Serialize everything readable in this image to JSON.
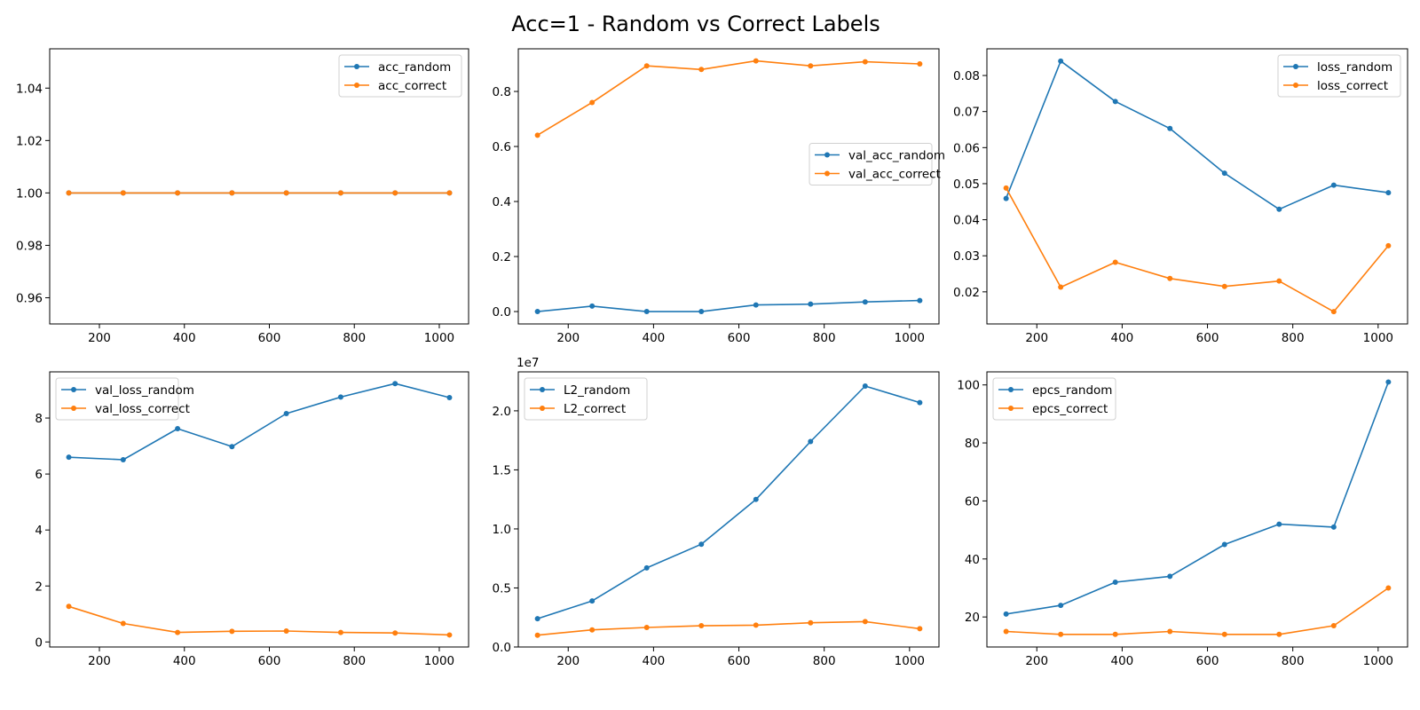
{
  "figure": {
    "title": "Acc=1 - Random vs Correct Labels"
  },
  "colors": {
    "random": "#1f77b4",
    "correct": "#ff7f0e"
  },
  "chart_data": [
    {
      "type": "line",
      "title": "",
      "xlabel": "",
      "ylabel": "",
      "x": [
        128,
        256,
        384,
        512,
        640,
        768,
        896,
        1024
      ],
      "xlim": [
        83,
        1069
      ],
      "ylim": [
        0.95,
        1.055
      ],
      "xticks": [
        200,
        400,
        600,
        800,
        1000
      ],
      "yticks": [
        0.96,
        0.98,
        1.0,
        1.02,
        1.04
      ],
      "ytick_labels": [
        "0.96",
        "0.98",
        "1.00",
        "1.02",
        "1.04"
      ],
      "offset_label": "",
      "legend_position": "upper right",
      "series": [
        {
          "name": "acc_random",
          "color_key": "random",
          "values": [
            1,
            1,
            1,
            1,
            1,
            1,
            1,
            1
          ]
        },
        {
          "name": "acc_correct",
          "color_key": "correct",
          "values": [
            1,
            1,
            1,
            1,
            1,
            1,
            1,
            1
          ]
        }
      ]
    },
    {
      "type": "line",
      "title": "",
      "xlabel": "",
      "ylabel": "",
      "x": [
        128,
        256,
        384,
        512,
        640,
        768,
        896,
        1024
      ],
      "xlim": [
        83,
        1069
      ],
      "ylim": [
        -0.045,
        0.955
      ],
      "xticks": [
        200,
        400,
        600,
        800,
        1000
      ],
      "yticks": [
        0.0,
        0.2,
        0.4,
        0.6,
        0.8
      ],
      "ytick_labels": [
        "0.0",
        "0.2",
        "0.4",
        "0.6",
        "0.8"
      ],
      "offset_label": "",
      "legend_position": "center right",
      "series": [
        {
          "name": "val_acc_random",
          "color_key": "random",
          "values": [
            0.0,
            0.02,
            0.0,
            0.0,
            0.024,
            0.027,
            0.035,
            0.04
          ]
        },
        {
          "name": "val_acc_correct",
          "color_key": "correct",
          "values": [
            0.641,
            0.76,
            0.893,
            0.88,
            0.911,
            0.893,
            0.908,
            0.9
          ]
        }
      ]
    },
    {
      "type": "line",
      "title": "",
      "xlabel": "",
      "ylabel": "",
      "x": [
        128,
        256,
        384,
        512,
        640,
        768,
        896,
        1024
      ],
      "xlim": [
        83,
        1069
      ],
      "ylim": [
        0.0111,
        0.0874
      ],
      "xticks": [
        200,
        400,
        600,
        800,
        1000
      ],
      "yticks": [
        0.02,
        0.03,
        0.04,
        0.05,
        0.06,
        0.07,
        0.08
      ],
      "ytick_labels": [
        "0.02",
        "0.03",
        "0.04",
        "0.05",
        "0.06",
        "0.07",
        "0.08"
      ],
      "offset_label": "",
      "legend_position": "upper right",
      "series": [
        {
          "name": "loss_random",
          "color_key": "random",
          "values": [
            0.0459,
            0.084,
            0.0728,
            0.0653,
            0.0529,
            0.0429,
            0.0496,
            0.0475
          ]
        },
        {
          "name": "loss_correct",
          "color_key": "correct",
          "values": [
            0.0488,
            0.0213,
            0.0282,
            0.0237,
            0.0215,
            0.023,
            0.0145,
            0.0328
          ]
        }
      ]
    },
    {
      "type": "line",
      "title": "",
      "xlabel": "",
      "ylabel": "",
      "x": [
        128,
        256,
        384,
        512,
        640,
        768,
        896,
        1024
      ],
      "xlim": [
        83,
        1069
      ],
      "ylim": [
        -0.18,
        9.65
      ],
      "xticks": [
        200,
        400,
        600,
        800,
        1000
      ],
      "yticks": [
        0,
        2,
        4,
        6,
        8
      ],
      "ytick_labels": [
        "0",
        "2",
        "4",
        "6",
        "8"
      ],
      "offset_label": "",
      "legend_position": "upper left",
      "series": [
        {
          "name": "val_loss_random",
          "color_key": "random",
          "values": [
            6.6,
            6.51,
            7.62,
            6.98,
            8.16,
            8.75,
            9.23,
            8.73
          ]
        },
        {
          "name": "val_loss_correct",
          "color_key": "correct",
          "values": [
            1.27,
            0.66,
            0.34,
            0.38,
            0.39,
            0.34,
            0.32,
            0.25
          ]
        }
      ]
    },
    {
      "type": "line",
      "title": "",
      "xlabel": "",
      "ylabel": "",
      "x": [
        128,
        256,
        384,
        512,
        640,
        768,
        896,
        1024
      ],
      "xlim": [
        83,
        1069
      ],
      "ylim": [
        0,
        23300000
      ],
      "xticks": [
        200,
        400,
        600,
        800,
        1000
      ],
      "yticks": [
        0,
        5000000,
        10000000,
        15000000,
        20000000
      ],
      "ytick_labels": [
        "0.0",
        "0.5",
        "1.0",
        "1.5",
        "2.0"
      ],
      "offset_label": "1e7",
      "legend_position": "upper left",
      "series": [
        {
          "name": "L2_random",
          "color_key": "random",
          "values": [
            2400000,
            3900000,
            6700000,
            8700000,
            12500000,
            17400000,
            22100000,
            20700000
          ]
        },
        {
          "name": "L2_correct",
          "color_key": "correct",
          "values": [
            1000000,
            1450000,
            1650000,
            1800000,
            1850000,
            2050000,
            2150000,
            1550000
          ]
        }
      ]
    },
    {
      "type": "line",
      "title": "",
      "xlabel": "",
      "ylabel": "",
      "x": [
        128,
        256,
        384,
        512,
        640,
        768,
        896,
        1024
      ],
      "xlim": [
        83,
        1069
      ],
      "ylim": [
        9.65,
        104.5
      ],
      "xticks": [
        200,
        400,
        600,
        800,
        1000
      ],
      "yticks": [
        20,
        40,
        60,
        80,
        100
      ],
      "ytick_labels": [
        "20",
        "40",
        "60",
        "80",
        "100"
      ],
      "offset_label": "",
      "legend_position": "upper left",
      "series": [
        {
          "name": "epcs_random",
          "color_key": "random",
          "values": [
            21,
            24,
            32,
            34,
            45,
            52,
            51,
            101
          ]
        },
        {
          "name": "epcs_correct",
          "color_key": "correct",
          "values": [
            15,
            14,
            14,
            15,
            14,
            14,
            17,
            30
          ]
        }
      ]
    }
  ]
}
